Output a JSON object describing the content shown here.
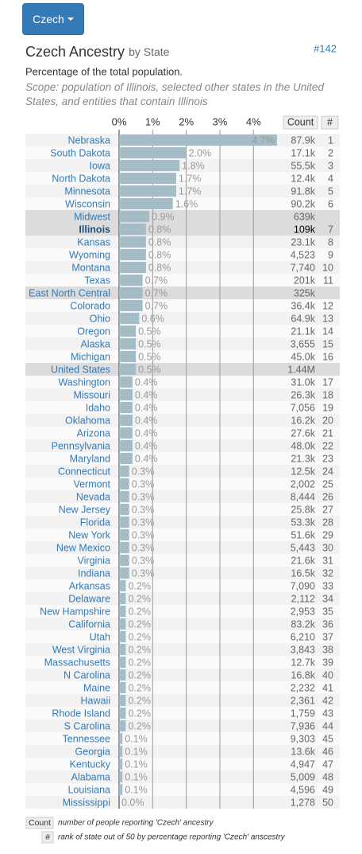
{
  "button": "Czech",
  "chart_data": {
    "type": "bar",
    "orientation": "horizontal",
    "title": "Czech Ancestry",
    "title_suffix": "by State",
    "badge": "#142",
    "subtitle": "Percentage of the total population.",
    "scope": "Scope: population of Illinois, selected other states in the United States, and entities that contain Illinois",
    "count_header": "Count",
    "rank_header": "#",
    "categories": [
      "Nebraska",
      "South Dakota",
      "Iowa",
      "North Dakota",
      "Minnesota",
      "Wisconsin",
      "Midwest",
      "Illinois",
      "Kansas",
      "Wyoming",
      "Montana",
      "Texas",
      "East North Central",
      "Colorado",
      "Ohio",
      "Oregon",
      "Alaska",
      "Michigan",
      "United States",
      "Washington",
      "Missouri",
      "Idaho",
      "Oklahoma",
      "Arizona",
      "Pennsylvania",
      "Maryland",
      "Connecticut",
      "Vermont",
      "Nevada",
      "New Jersey",
      "Florida",
      "New York",
      "New Mexico",
      "Virginia",
      "Indiana",
      "Arkansas",
      "Delaware",
      "New Hampshire",
      "California",
      "Utah",
      "West Virginia",
      "Massachusetts",
      "N Carolina",
      "Maine",
      "Hawaii",
      "Rhode Island",
      "S Carolina",
      "Tennessee",
      "Georgia",
      "Kentucky",
      "Alabama",
      "Louisiana",
      "Mississippi"
    ],
    "values": [
      4.7,
      2.0,
      1.8,
      1.7,
      1.7,
      1.6,
      0.9,
      0.8,
      0.8,
      0.8,
      0.8,
      0.7,
      0.7,
      0.7,
      0.6,
      0.5,
      0.5,
      0.5,
      0.5,
      0.4,
      0.4,
      0.4,
      0.4,
      0.4,
      0.4,
      0.4,
      0.3,
      0.3,
      0.3,
      0.3,
      0.3,
      0.3,
      0.3,
      0.3,
      0.3,
      0.2,
      0.2,
      0.2,
      0.2,
      0.2,
      0.2,
      0.2,
      0.2,
      0.2,
      0.2,
      0.2,
      0.2,
      0.1,
      0.1,
      0.1,
      0.1,
      0.1,
      0.0
    ],
    "value_labels": [
      "4.7%",
      "2.0%",
      "1.8%",
      "1.7%",
      "1.7%",
      "1.6%",
      "0.9%",
      "0.8%",
      "0.8%",
      "0.8%",
      "0.8%",
      "0.7%",
      "0.7%",
      "0.7%",
      "0.6%",
      "0.5%",
      "0.5%",
      "0.5%",
      "0.5%",
      "0.4%",
      "0.4%",
      "0.4%",
      "0.4%",
      "0.4%",
      "0.4%",
      "0.4%",
      "0.3%",
      "0.3%",
      "0.3%",
      "0.3%",
      "0.3%",
      "0.3%",
      "0.3%",
      "0.3%",
      "0.3%",
      "0.2%",
      "0.2%",
      "0.2%",
      "0.2%",
      "0.2%",
      "0.2%",
      "0.2%",
      "0.2%",
      "0.2%",
      "0.2%",
      "0.2%",
      "0.2%",
      "0.1%",
      "0.1%",
      "0.1%",
      "0.1%",
      "0.1%",
      "0.0%"
    ],
    "counts": [
      "87.9k",
      "17.1k",
      "55.5k",
      "12.4k",
      "91.8k",
      "90.2k",
      "639k",
      "109k",
      "23.1k",
      "4,523",
      "7,740",
      "201k",
      "325k",
      "36.4k",
      "64.9k",
      "21.1k",
      "3,655",
      "45.0k",
      "1.44M",
      "31.0k",
      "26.3k",
      "7,056",
      "16.2k",
      "27.6k",
      "48.0k",
      "21.3k",
      "12.5k",
      "2,002",
      "8,444",
      "25.8k",
      "53.3k",
      "51.6k",
      "5,443",
      "21.6k",
      "16.5k",
      "7,090",
      "2,112",
      "2,953",
      "83.2k",
      "6,210",
      "3,843",
      "12.7k",
      "16.8k",
      "2,232",
      "2,361",
      "1,759",
      "7,936",
      "9,303",
      "13.6k",
      "4,947",
      "5,009",
      "4,596",
      "1,278"
    ],
    "ranks": [
      1,
      2,
      3,
      4,
      5,
      6,
      null,
      7,
      8,
      9,
      10,
      11,
      null,
      12,
      13,
      14,
      15,
      16,
      null,
      17,
      18,
      19,
      20,
      21,
      22,
      23,
      24,
      25,
      26,
      27,
      28,
      29,
      30,
      31,
      32,
      33,
      34,
      35,
      36,
      37,
      38,
      39,
      40,
      41,
      42,
      43,
      44,
      45,
      46,
      47,
      48,
      49,
      50
    ],
    "highlight_index": 7,
    "color": "#a3bcc6",
    "xlim": [
      0,
      4.75
    ],
    "xticks": [
      {
        "value": 0,
        "label": "0%"
      },
      {
        "value": 1,
        "label": "1%"
      },
      {
        "value": 2,
        "label": "2%"
      },
      {
        "value": 3,
        "label": "3%"
      },
      {
        "value": 4,
        "label": "4%"
      }
    ],
    "grid": true,
    "footnotes": [
      {
        "key": "Count",
        "text": "number of people reporting 'Czech' ancestry"
      },
      {
        "key": "#",
        "text": "rank of state out of 50 by percentage reporting 'Czech' anscestry"
      }
    ]
  }
}
